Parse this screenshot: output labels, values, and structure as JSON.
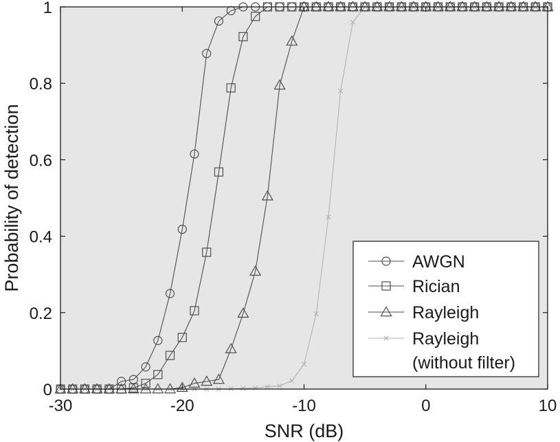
{
  "chart_data": {
    "type": "line",
    "xlabel": "SNR (dB)",
    "ylabel": "Probability of detection",
    "xlim": [
      -30,
      10
    ],
    "ylim": [
      0,
      1
    ],
    "xticks": [
      -30,
      -20,
      -10,
      0,
      10
    ],
    "yticks": [
      0,
      0.2,
      0.4,
      0.6,
      0.8,
      1
    ],
    "xtick_labels": [
      "-30",
      "-20",
      "-10",
      "0",
      "10"
    ],
    "ytick_labels": [
      "0",
      "0.2",
      "0.4",
      "0.6",
      "0.8",
      "1"
    ],
    "grid": false,
    "legend_position": "bottom-right",
    "plot_background": "#e6e6e6",
    "x": [
      -30,
      -29,
      -28,
      -27,
      -26,
      -25,
      -24,
      -23,
      -22,
      -21,
      -20,
      -19,
      -18,
      -17,
      -16,
      -15,
      -14,
      -13,
      -12,
      -11,
      -10,
      -9,
      -8,
      -7,
      -6,
      -5,
      -4,
      -3,
      -2,
      -1,
      0,
      1,
      2,
      3,
      4,
      5,
      6,
      7,
      8,
      9,
      10
    ],
    "series": [
      {
        "name": "AWGN",
        "marker": "circle",
        "color": "#4d4d4d",
        "values": [
          0,
          0,
          0,
          0,
          0,
          0.02,
          0.025,
          0.058,
          0.127,
          0.25,
          0.418,
          0.615,
          0.878,
          0.963,
          0.99,
          1,
          1,
          1,
          1,
          1,
          1,
          1,
          1,
          1,
          1,
          1,
          1,
          1,
          1,
          1,
          1,
          1,
          1,
          1,
          1,
          1,
          1,
          1,
          1,
          1,
          1
        ]
      },
      {
        "name": "Rician",
        "marker": "square",
        "color": "#4d4d4d",
        "values": [
          0,
          0,
          0,
          0,
          0,
          0,
          0.003,
          0.015,
          0.038,
          0.088,
          0.135,
          0.205,
          0.358,
          0.568,
          0.788,
          0.922,
          0.975,
          1,
          1,
          1,
          1,
          1,
          1,
          1,
          1,
          1,
          1,
          1,
          1,
          1,
          1,
          1,
          1,
          1,
          1,
          1,
          1,
          1,
          1,
          1,
          1
        ]
      },
      {
        "name": "Rayleigh",
        "marker": "triangle",
        "color": "#4d4d4d",
        "values": [
          0,
          0,
          0,
          0,
          0,
          0,
          0,
          0,
          0,
          0,
          0.004,
          0.015,
          0.02,
          0.025,
          0.105,
          0.198,
          0.308,
          0.505,
          0.795,
          0.91,
          1,
          1,
          1,
          1,
          1,
          1,
          1,
          1,
          1,
          1,
          1,
          1,
          1,
          1,
          1,
          1,
          1,
          1,
          1,
          1,
          1
        ]
      },
      {
        "name": "Rayleigh\n(without filter)",
        "legend_lines": [
          "Rayleigh",
          "(without filter)"
        ],
        "marker": "x",
        "color": "#b3b3b3",
        "values": [
          0,
          0,
          0,
          0,
          0,
          0,
          0,
          0,
          0,
          0,
          0,
          0,
          0,
          0,
          0.001,
          0.002,
          0.003,
          0.006,
          0.008,
          0.022,
          0.065,
          0.197,
          0.45,
          0.78,
          0.96,
          1,
          1,
          1,
          1,
          1,
          1,
          1,
          1,
          1,
          1,
          1,
          1,
          1,
          1,
          1,
          1
        ]
      }
    ]
  }
}
